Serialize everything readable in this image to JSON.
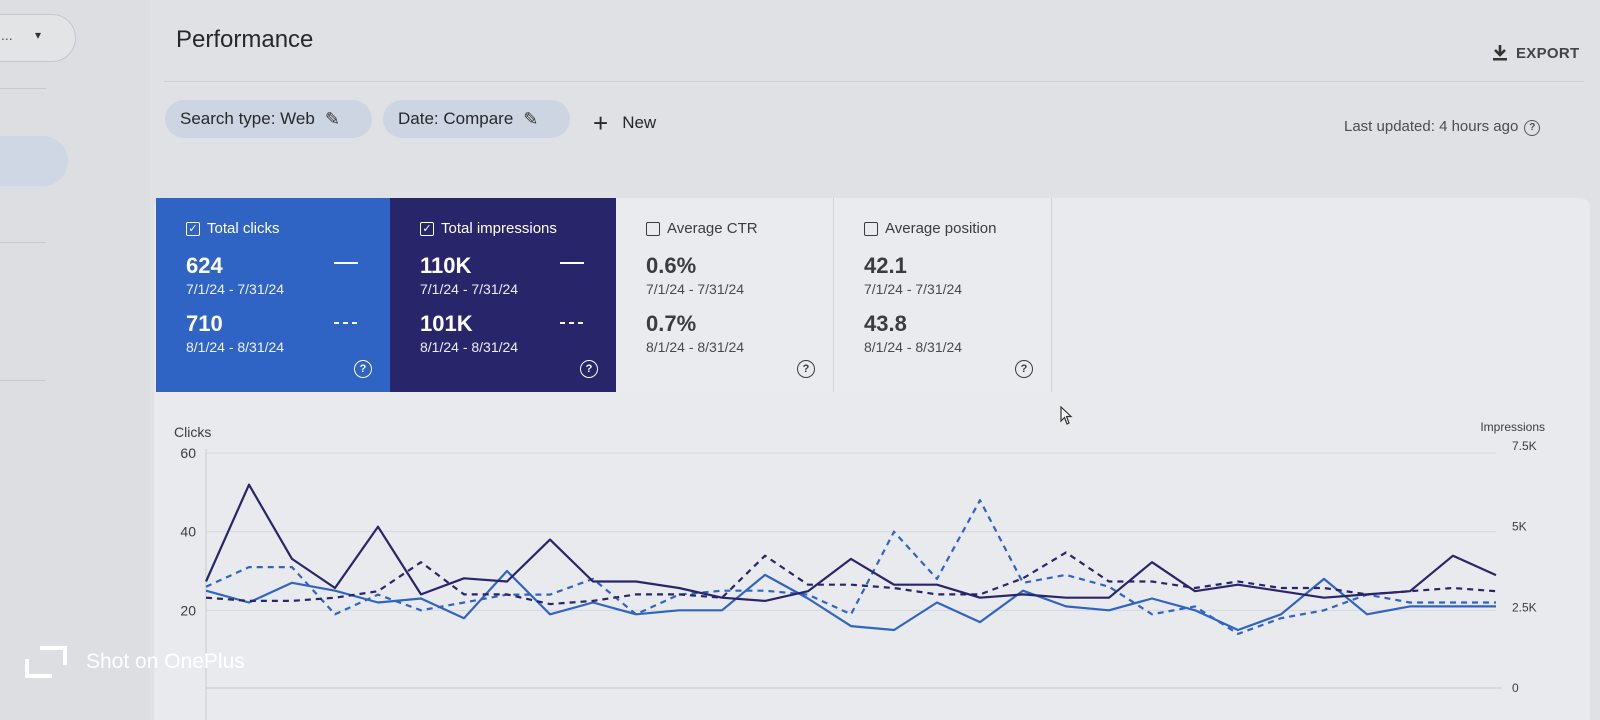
{
  "left_rail": {
    "property_dots": "...",
    "caret": "▾"
  },
  "header": {
    "title": "Performance",
    "export_label": "EXPORT"
  },
  "filters": {
    "chips": [
      {
        "label": "Search type: Web"
      },
      {
        "label": "Date: Compare"
      }
    ],
    "new_label": "New",
    "last_updated": "Last updated: 4 hours ago"
  },
  "metrics": [
    {
      "label": "Total clicks",
      "checked": true,
      "value1": "624",
      "range1": "7/1/24 - 7/31/24",
      "value2": "710",
      "range2": "8/1/24 - 8/31/24",
      "color": "#2f64c4"
    },
    {
      "label": "Total impressions",
      "checked": true,
      "value1": "110K",
      "range1": "7/1/24 - 7/31/24",
      "value2": "101K",
      "range2": "8/1/24 - 8/31/24",
      "color": "#28256b"
    },
    {
      "label": "Average CTR",
      "checked": false,
      "value1": "0.6%",
      "range1": "7/1/24 - 7/31/24",
      "value2": "0.7%",
      "range2": "8/1/24 - 8/31/24"
    },
    {
      "label": "Average position",
      "checked": false,
      "value1": "42.1",
      "range1": "7/1/24 - 7/31/24",
      "value2": "43.8",
      "range2": "8/1/24 - 8/31/24"
    }
  ],
  "chart_data": {
    "type": "line",
    "ylabel": "Clicks",
    "y2label": "Impressions",
    "yticks": [
      "60",
      "40",
      "20"
    ],
    "y2ticks": [
      "7.5K",
      "5K",
      "2.5K",
      "0"
    ],
    "ylim": [
      0,
      60
    ],
    "y2lim": [
      0,
      7500
    ],
    "grid": true,
    "x": [
      1,
      2,
      3,
      4,
      5,
      6,
      7,
      8,
      9,
      10,
      11,
      12,
      13,
      14,
      15,
      16,
      17,
      18,
      19,
      20,
      21,
      22,
      23,
      24,
      25,
      26,
      27,
      28,
      29,
      30,
      31
    ],
    "series": [
      {
        "style": "solid",
        "color": "#2f64c4",
        "axis": "left",
        "values": [
          25,
          22,
          27,
          25,
          22,
          23,
          18,
          30,
          19,
          22,
          19,
          20,
          20,
          29,
          23,
          16,
          15,
          22,
          17,
          25,
          21,
          20,
          23,
          20,
          15,
          19,
          28,
          19,
          21,
          21,
          21
        ]
      },
      {
        "style": "dashed",
        "color": "#2f64c4",
        "axis": "left",
        "values": [
          26,
          31,
          31,
          19,
          24,
          20,
          22,
          24,
          24,
          28,
          19,
          24,
          25,
          25,
          24,
          19,
          40,
          28,
          48,
          27,
          29,
          26,
          19,
          21,
          14,
          18,
          20,
          24,
          22,
          22,
          22
        ]
      },
      {
        "style": "solid",
        "color": "#28256b",
        "axis": "right",
        "values": [
          3300,
          6300,
          4000,
          3100,
          5000,
          2900,
          3400,
          3300,
          4600,
          3300,
          3300,
          3100,
          2800,
          2700,
          3000,
          4000,
          3200,
          3200,
          2800,
          2900,
          2800,
          2800,
          3900,
          3000,
          3200,
          3000,
          2800,
          2900,
          3000,
          4100,
          3500
        ]
      },
      {
        "style": "dashed",
        "color": "#28256b",
        "axis": "right",
        "values": [
          2800,
          2700,
          2700,
          2800,
          3000,
          3900,
          2900,
          2900,
          2600,
          2700,
          2900,
          2900,
          2800,
          4100,
          3200,
          3200,
          3100,
          2900,
          2900,
          3400,
          4200,
          3300,
          3300,
          3100,
          3300,
          3100,
          3100,
          2900,
          3000,
          3100,
          3000
        ]
      }
    ]
  },
  "watermark": "Shot on OnePlus"
}
